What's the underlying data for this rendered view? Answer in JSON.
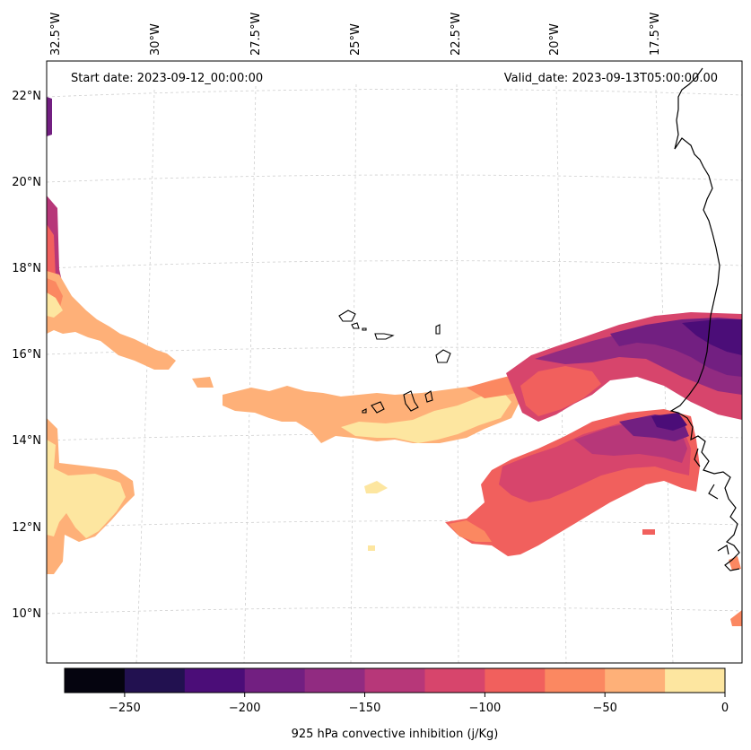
{
  "map": {
    "start_date": "Start date: 2023-09-12_00:00:00",
    "valid_date": "Valid_date: 2023-09-13T05:00:00.00",
    "lon_labels": [
      "32.5°W",
      "30°W",
      "27.5°W",
      "25°W",
      "22.5°W",
      "20°W",
      "17.5°W"
    ],
    "lat_labels": [
      "22°N",
      "20°N",
      "18°N",
      "16°N",
      "14°N",
      "12°N",
      "10°N"
    ]
  },
  "colorbar": {
    "label": "925 hPa convective inhibition (j/Kg)",
    "tick_labels": [
      "−250",
      "−200",
      "−150",
      "−100",
      "−50",
      "0"
    ],
    "levels": [
      -275,
      -250,
      -225,
      -200,
      -175,
      -150,
      -125,
      -100,
      -75,
      -50,
      -25,
      0
    ],
    "colors": [
      "#05040f",
      "#221150",
      "#4b0d78",
      "#721f81",
      "#912b81",
      "#b73779",
      "#d7456c",
      "#f1605d",
      "#fb8861",
      "#feb078",
      "#fde6a0"
    ]
  },
  "colors": {
    "land_outline": "#000000",
    "grid": "#cfcfcf"
  }
}
